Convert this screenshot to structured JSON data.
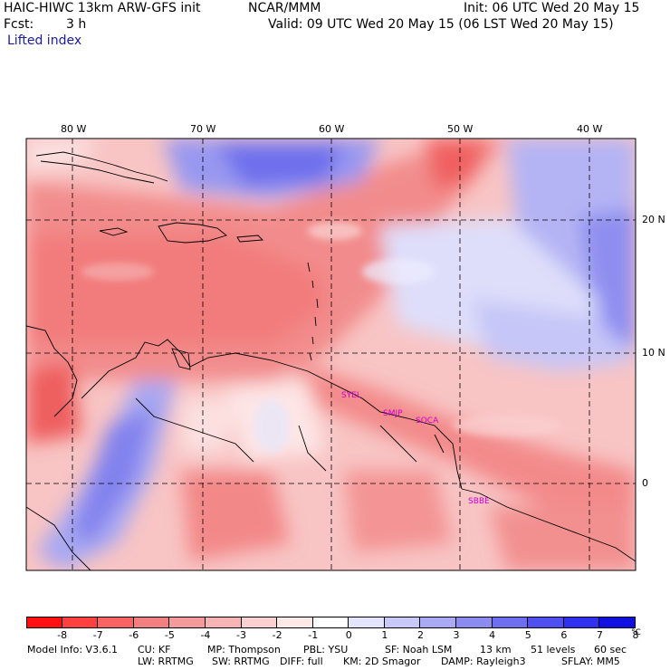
{
  "header": {
    "title_left": "HAIC-HIWC 13km ARW-GFS init",
    "title_center": "NCAR/MMM",
    "init": "Init: 06 UTC Wed 20 May 15",
    "fcst_label": "Fcst:",
    "fcst_value": "3 h",
    "valid": "Valid: 09 UTC Wed 20 May 15 (06 LST Wed 20 May 15)",
    "field_name": "Lifted index"
  },
  "map": {
    "lon_labels": [
      "80 W",
      "70 W",
      "60 W",
      "50 W",
      "40 W"
    ],
    "lat_labels": [
      "20 N",
      "10 N",
      "0"
    ],
    "stations": [
      "SYEL",
      "SMJP",
      "SOCA",
      "SBBE"
    ]
  },
  "colorbar": {
    "colors": [
      "#ff1111",
      "#ff4040",
      "#f86464",
      "#f28080",
      "#f49a9a",
      "#f7b4b4",
      "#fad0d0",
      "#fde8e8",
      "#ffffff",
      "#e4e4ff",
      "#c8c8fa",
      "#aaaaf4",
      "#8c8cf0",
      "#6e6ef0",
      "#5050f0",
      "#3030f0",
      "#1010e0"
    ],
    "ticks": [
      "-8",
      "-7",
      "-6",
      "-5",
      "-4",
      "-3",
      "-2",
      "-1",
      "0",
      "1",
      "2",
      "3",
      "4",
      "5",
      "6",
      "7",
      "8"
    ],
    "unit": "°C"
  },
  "footer": {
    "line1": [
      "Model Info: V3.6.1",
      "CU: KF",
      "MP: Thompson",
      "PBL: YSU",
      "SF: Noah LSM",
      "13 km",
      "51 levels",
      "60 sec"
    ],
    "line2": [
      "LW: RRTMG",
      "SW: RRTMG",
      "DIFF: full",
      "KM: 2D Smagor",
      "DAMP: Rayleigh3",
      "SFLAY: MM5"
    ]
  }
}
